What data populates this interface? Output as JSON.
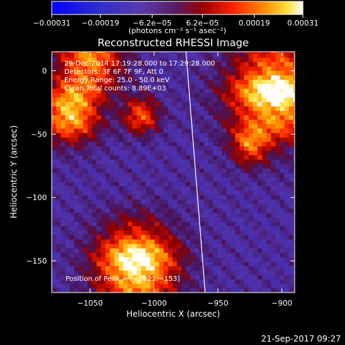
{
  "chart_data": {
    "type": "heatmap",
    "title": "Reconstructed RHESSI Image",
    "xlabel": "Heliocentric X (arcsec)",
    "ylabel": "Heliocentric Y (arcsec)",
    "xlim": [
      -1080,
      -890
    ],
    "ylim": [
      -175,
      15
    ],
    "xticks": [
      -1050,
      -1000,
      -950,
      -900
    ],
    "xtick_labels": [
      "−1050",
      "−1000",
      "−950",
      "−900"
    ],
    "yticks": [
      0,
      -50,
      -100,
      -150
    ],
    "ytick_labels": [
      "0",
      "−50",
      "−100",
      "−150"
    ],
    "colorbar": {
      "range": [
        -0.00031,
        0.00031
      ],
      "ticks": [
        -0.00031,
        -0.00019,
        -6.2e-05,
        6.2e-05,
        0.00019,
        0.00031
      ],
      "tick_labels": [
        "−0.00031",
        "−0.00019",
        "−6.2e−05",
        "6.2e−05",
        "0.00019",
        "0.00031"
      ],
      "unit_label": "(photons cm⁻² s⁻¹ asec⁻²)"
    },
    "annotations": {
      "time_range": "29-Dec-2014 17:19:28.000 to 17:29:28.000",
      "detectors": "Detectors: 3F 6F 7F 9F, Att 0",
      "energy": "Energy Range: 25.0 - 50.0 keV",
      "clean": "Clean     Total counts: 8.89E+03",
      "peak": "Position of Peak = [−1021,−153]"
    },
    "peak_position": [
      -1021,
      -153
    ],
    "limb_line": [
      [
        -975,
        15
      ],
      [
        -960,
        -175
      ]
    ],
    "bright_regions": [
      {
        "x": -1066,
        "y": -33,
        "r": 16,
        "level": 0.85
      },
      {
        "x": -1014,
        "y": -153,
        "r": 22,
        "level": 1.0
      },
      {
        "x": -905,
        "y": -18,
        "r": 25,
        "level": 0.95
      },
      {
        "x": -1050,
        "y": 8,
        "r": 18,
        "level": 0.7
      },
      {
        "x": -1010,
        "y": -35,
        "r": 10,
        "level": 0.6
      },
      {
        "x": -925,
        "y": -60,
        "r": 10,
        "level": 0.5
      }
    ]
  },
  "footer": {
    "date": "21-Sep-2017 09:27"
  }
}
